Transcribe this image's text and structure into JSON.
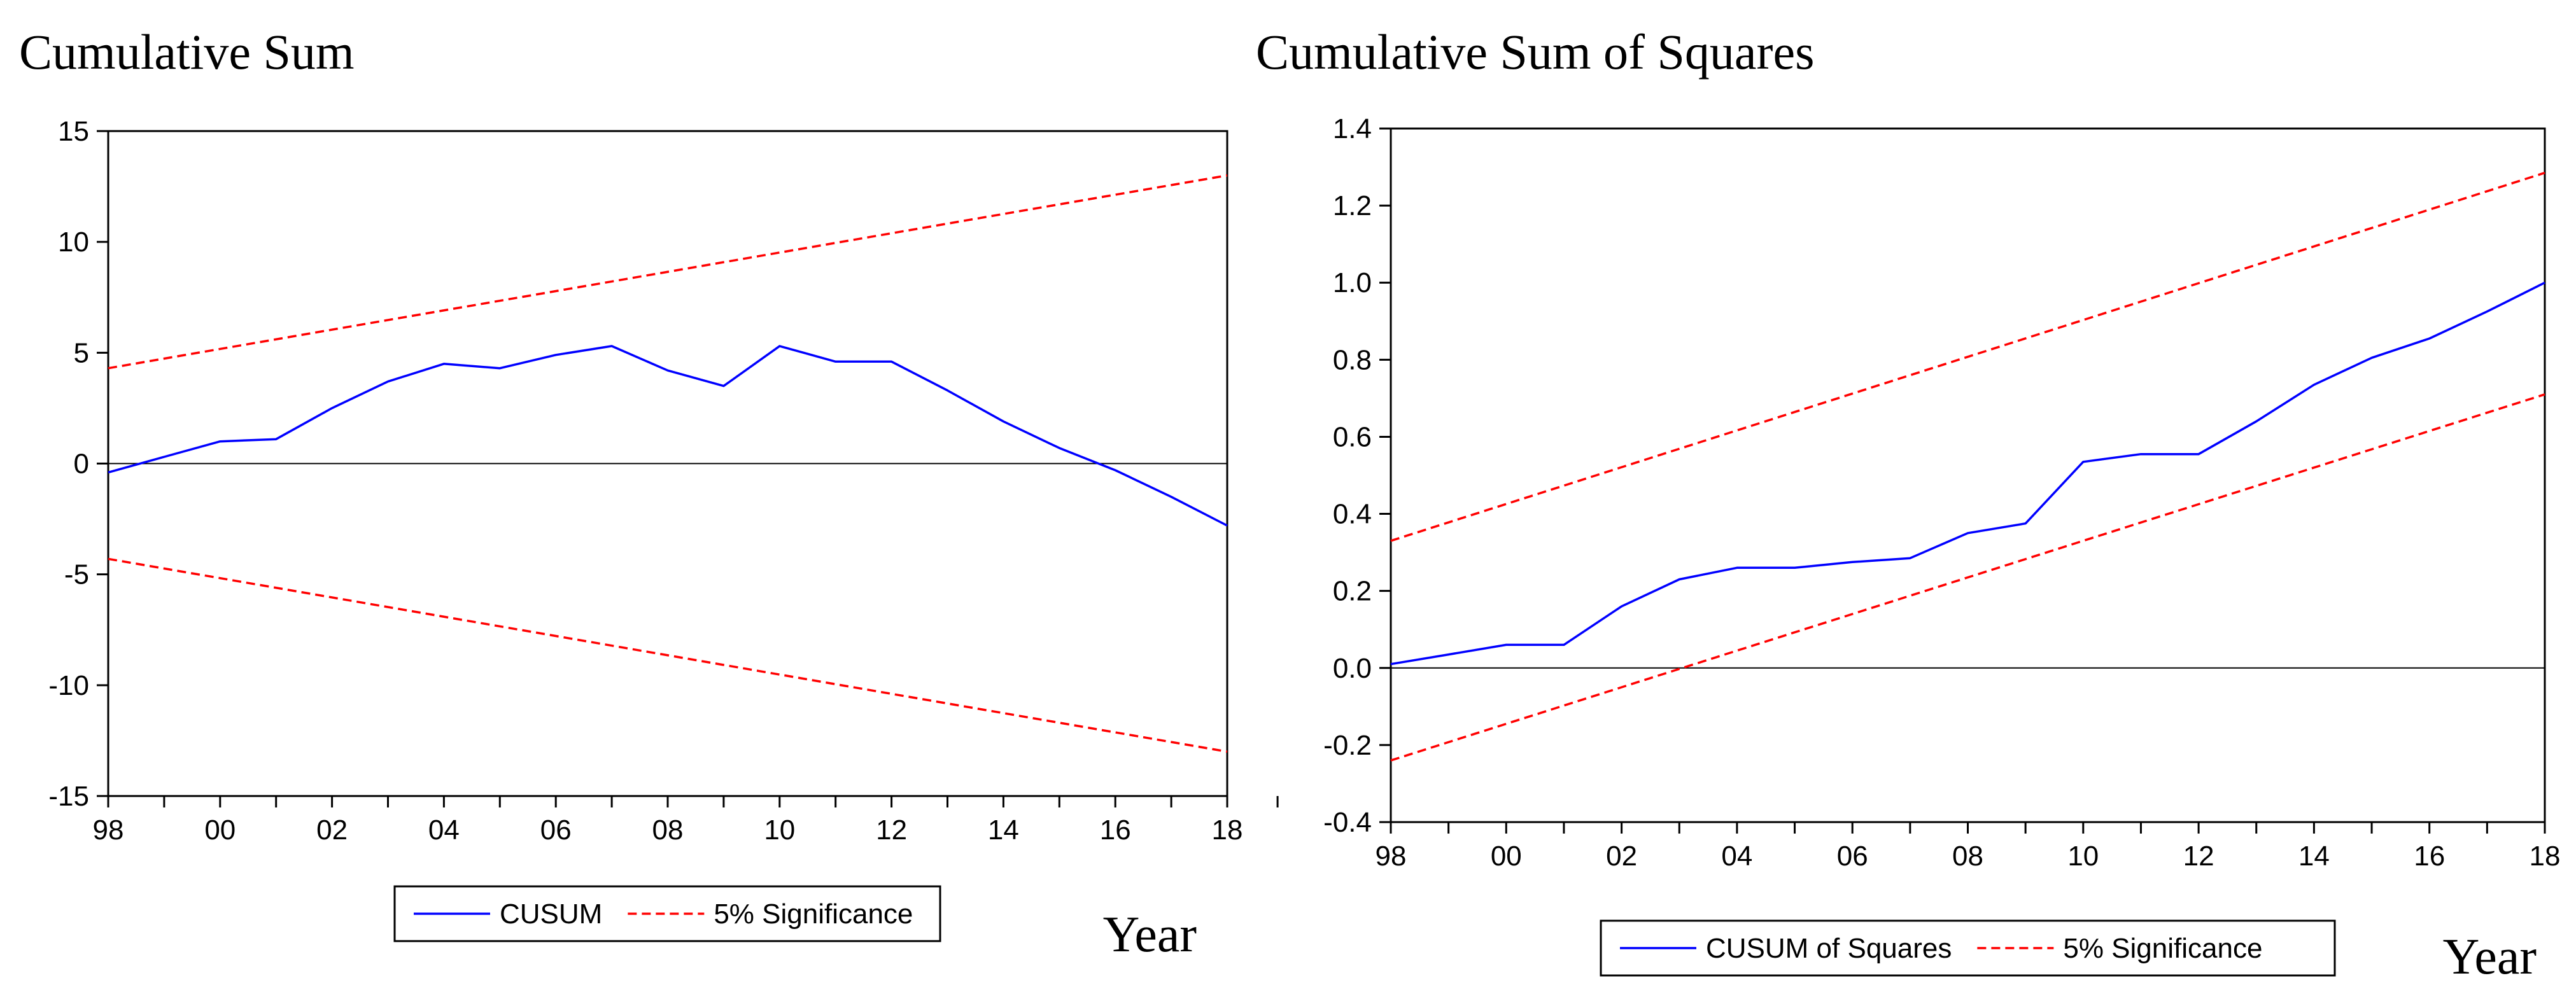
{
  "chart_data": [
    {
      "type": "line",
      "title": "Cumulative Sum",
      "xlabel": "Year",
      "ylabel": "",
      "ylim": [
        -15,
        15
      ],
      "xlim": [
        1998,
        2018
      ],
      "yticks": [
        {
          "v": 15,
          "label": "15"
        },
        {
          "v": 10,
          "label": "10"
        },
        {
          "v": 5,
          "label": "5"
        },
        {
          "v": 0,
          "label": "0"
        },
        {
          "v": -5,
          "label": "-5"
        },
        {
          "v": -10,
          "label": "-10"
        },
        {
          "v": -15,
          "label": "-15"
        }
      ],
      "xticks": [
        {
          "v": 1998,
          "label": "98"
        },
        {
          "v": 2000,
          "label": "00"
        },
        {
          "v": 2002,
          "label": "02"
        },
        {
          "v": 2004,
          "label": "04"
        },
        {
          "v": 2006,
          "label": "06"
        },
        {
          "v": 2008,
          "label": "08"
        },
        {
          "v": 2010,
          "label": "10"
        },
        {
          "v": 2012,
          "label": "12"
        },
        {
          "v": 2014,
          "label": "14"
        },
        {
          "v": 2016,
          "label": "16"
        },
        {
          "v": 2018,
          "label": "18"
        }
      ],
      "zero_line": 0,
      "legend_position": "bottom-center",
      "series": [
        {
          "name": "CUSUM",
          "color": "#0000ff",
          "style": "solid",
          "x": [
            1998,
            1999,
            2000,
            2001,
            2002,
            2003,
            2004,
            2005,
            2006,
            2007,
            2008,
            2009,
            2010,
            2011,
            2012,
            2013,
            2014,
            2015,
            2016,
            2017,
            2018
          ],
          "values": [
            -0.4,
            0.3,
            1.0,
            1.1,
            2.5,
            3.7,
            4.5,
            4.3,
            4.9,
            5.3,
            4.2,
            3.5,
            5.3,
            4.6,
            4.6,
            3.3,
            1.9,
            0.7,
            -0.3,
            -1.5,
            -2.8
          ]
        },
        {
          "name": "5% Significance",
          "color": "#ff0000",
          "style": "dashed",
          "x": [
            1998,
            2018
          ],
          "values": [
            4.3,
            13.0
          ]
        },
        {
          "name": "5% Significance (lower)",
          "color": "#ff0000",
          "style": "dashed",
          "x": [
            1998,
            2018
          ],
          "values": [
            -4.3,
            -13.0
          ]
        }
      ],
      "legend": [
        {
          "label": "CUSUM",
          "color": "#0000ff",
          "style": "solid"
        },
        {
          "label": "5% Significance",
          "color": "#ff0000",
          "style": "dashed"
        }
      ]
    },
    {
      "type": "line",
      "title": "Cumulative Sum of Squares",
      "xlabel": "Year",
      "ylabel": "",
      "ylim": [
        -0.4,
        1.4
      ],
      "xlim": [
        1998,
        2018
      ],
      "yticks": [
        {
          "v": 1.4,
          "label": "1.4"
        },
        {
          "v": 1.2,
          "label": "1.2"
        },
        {
          "v": 1.0,
          "label": "1.0"
        },
        {
          "v": 0.8,
          "label": "0.8"
        },
        {
          "v": 0.6,
          "label": "0.6"
        },
        {
          "v": 0.4,
          "label": "0.4"
        },
        {
          "v": 0.2,
          "label": "0.2"
        },
        {
          "v": 0.0,
          "label": "0.0"
        },
        {
          "v": -0.2,
          "label": "-0.2"
        },
        {
          "v": -0.4,
          "label": "-0.4"
        }
      ],
      "xticks": [
        {
          "v": 1998,
          "label": "98"
        },
        {
          "v": 2000,
          "label": "00"
        },
        {
          "v": 2002,
          "label": "02"
        },
        {
          "v": 2004,
          "label": "04"
        },
        {
          "v": 2006,
          "label": "06"
        },
        {
          "v": 2008,
          "label": "08"
        },
        {
          "v": 2010,
          "label": "10"
        },
        {
          "v": 2012,
          "label": "12"
        },
        {
          "v": 2014,
          "label": "14"
        },
        {
          "v": 2016,
          "label": "16"
        },
        {
          "v": 2018,
          "label": "18"
        }
      ],
      "zero_line": 0,
      "legend_position": "bottom-center",
      "series": [
        {
          "name": "CUSUM of Squares",
          "color": "#0000ff",
          "style": "solid",
          "x": [
            1998,
            1999,
            2000,
            2001,
            2002,
            2003,
            2004,
            2005,
            2006,
            2007,
            2008,
            2009,
            2010,
            2011,
            2012,
            2013,
            2014,
            2015,
            2016,
            2017,
            2018
          ],
          "values": [
            0.01,
            0.035,
            0.06,
            0.06,
            0.16,
            0.23,
            0.26,
            0.26,
            0.275,
            0.285,
            0.35,
            0.375,
            0.535,
            0.555,
            0.555,
            0.64,
            0.735,
            0.805,
            0.855,
            0.925,
            1.0
          ]
        },
        {
          "name": "5% Significance",
          "color": "#ff0000",
          "style": "dashed",
          "x": [
            1998,
            2018
          ],
          "values": [
            0.33,
            1.285
          ]
        },
        {
          "name": "5% Significance (lower)",
          "color": "#ff0000",
          "style": "dashed",
          "x": [
            1998,
            2018
          ],
          "values": [
            -0.24,
            0.71
          ]
        }
      ],
      "legend": [
        {
          "label": "CUSUM of Squares",
          "color": "#0000ff",
          "style": "solid"
        },
        {
          "label": "5% Significance",
          "color": "#ff0000",
          "style": "dashed"
        }
      ]
    }
  ]
}
